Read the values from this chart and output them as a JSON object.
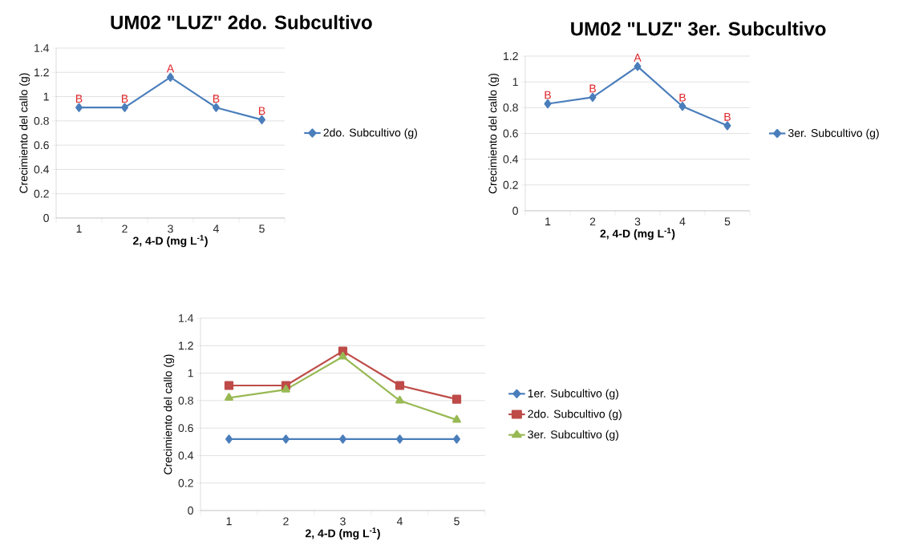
{
  "chart_data": [
    {
      "type": "line",
      "title": "UM02 \"LUZ\" 2do. Subcultivo",
      "xlabel": "2, 4-D (mg L$^{-1}$)",
      "ylabel": "Crecimiento del callo (g)",
      "categories": [
        "1",
        "2",
        "3",
        "4",
        "5"
      ],
      "series": [
        {
          "name": "2do. Subcultivo (g)",
          "color": "#4a7ebb",
          "marker": "diamond",
          "values": [
            0.91,
            0.91,
            1.16,
            0.91,
            0.81
          ]
        }
      ],
      "ylim": [
        0,
        1.4
      ],
      "yticks": [
        0,
        0.2,
        0.4,
        0.6,
        0.8,
        1,
        1.2,
        1.4
      ],
      "grid": "y",
      "legend": "right",
      "annotations": [
        {
          "text": "B",
          "x": "1",
          "y": 0.91
        },
        {
          "text": "B",
          "x": "2",
          "y": 0.91
        },
        {
          "text": "A",
          "x": "3",
          "y": 1.16
        },
        {
          "text": "B",
          "x": "4",
          "y": 0.91
        },
        {
          "text": "B",
          "x": "5",
          "y": 0.81
        }
      ]
    },
    {
      "type": "line",
      "title": "UM02 \"LUZ\" 3er. Subcultivo",
      "xlabel": "2, 4-D (mg L$^{-1}$)",
      "ylabel": "Crecimiento del callo (g)",
      "categories": [
        "1",
        "2",
        "3",
        "4",
        "5"
      ],
      "series": [
        {
          "name": "3er. Subcultivo (g)",
          "color": "#4a7ebb",
          "marker": "diamond",
          "values": [
            0.83,
            0.88,
            1.12,
            0.81,
            0.66
          ]
        }
      ],
      "ylim": [
        0,
        1.2
      ],
      "yticks": [
        0,
        0.2,
        0.4,
        0.6,
        0.8,
        1,
        1.2
      ],
      "grid": "y",
      "legend": "right",
      "annotations": [
        {
          "text": "B",
          "x": "1",
          "y": 0.83
        },
        {
          "text": "B",
          "x": "2",
          "y": 0.88
        },
        {
          "text": "A",
          "x": "3",
          "y": 1.12
        },
        {
          "text": "B",
          "x": "4",
          "y": 0.81
        },
        {
          "text": "B",
          "x": "5",
          "y": 0.66
        }
      ]
    },
    {
      "type": "line",
      "xlabel": "2, 4-D (mg L$^{-1}$)",
      "ylabel": "Crecimiento del callo (g)",
      "categories": [
        "1",
        "2",
        "3",
        "4",
        "5"
      ],
      "series": [
        {
          "name": "1er. Subcultivo (g)",
          "color": "#4a7ebb",
          "marker": "diamond",
          "values": [
            0.52,
            0.52,
            0.52,
            0.52,
            0.52
          ]
        },
        {
          "name": "2do. Subcultivo (g)",
          "color": "#be4b48",
          "marker": "square",
          "values": [
            0.91,
            0.91,
            1.16,
            0.91,
            0.81
          ]
        },
        {
          "name": "3er. Subcultivo (g)",
          "color": "#98b954",
          "marker": "triangle",
          "values": [
            0.82,
            0.88,
            1.12,
            0.8,
            0.66
          ]
        }
      ],
      "ylim": [
        0,
        1.4
      ],
      "yticks": [
        0,
        0.2,
        0.4,
        0.6,
        0.8,
        1,
        1.2,
        1.4
      ],
      "grid": "y",
      "legend": "right"
    }
  ]
}
